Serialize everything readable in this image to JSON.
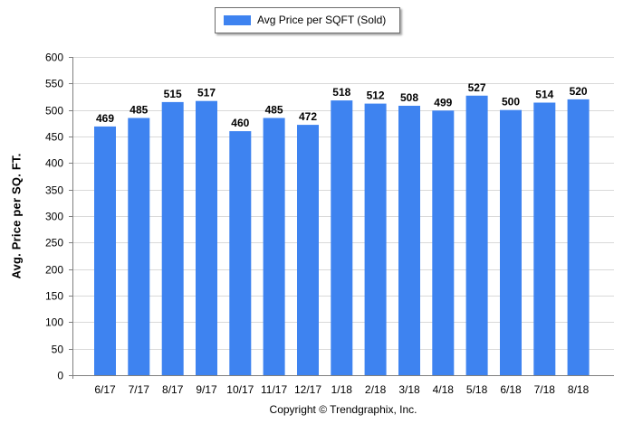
{
  "legend": {
    "label": "Avg Price per SQFT (Sold)"
  },
  "copyright": "Copyright © Trendgraphix, Inc.",
  "colors": {
    "bar": "#3e83f0",
    "grid": "#d9d9d9",
    "axis": "#7f7f7f"
  },
  "chart_data": {
    "type": "bar",
    "title": "",
    "xlabel": "",
    "ylabel": "Avg. Price per SQ. FT.",
    "categories": [
      "6/17",
      "7/17",
      "8/17",
      "9/17",
      "10/17",
      "11/17",
      "12/17",
      "1/18",
      "2/18",
      "3/18",
      "4/18",
      "5/18",
      "6/18",
      "7/18",
      "8/18"
    ],
    "series": [
      {
        "name": "Avg Price per SQFT (Sold)",
        "values": [
          469,
          485,
          515,
          517,
          460,
          485,
          472,
          518,
          512,
          508,
          499,
          527,
          500,
          514,
          520
        ]
      }
    ],
    "ylim": [
      0,
      600
    ],
    "yticks": [
      0,
      50,
      100,
      150,
      200,
      250,
      300,
      350,
      400,
      450,
      500,
      550,
      600
    ],
    "grid": true,
    "legend_position": "top-center",
    "data_labels": true
  }
}
